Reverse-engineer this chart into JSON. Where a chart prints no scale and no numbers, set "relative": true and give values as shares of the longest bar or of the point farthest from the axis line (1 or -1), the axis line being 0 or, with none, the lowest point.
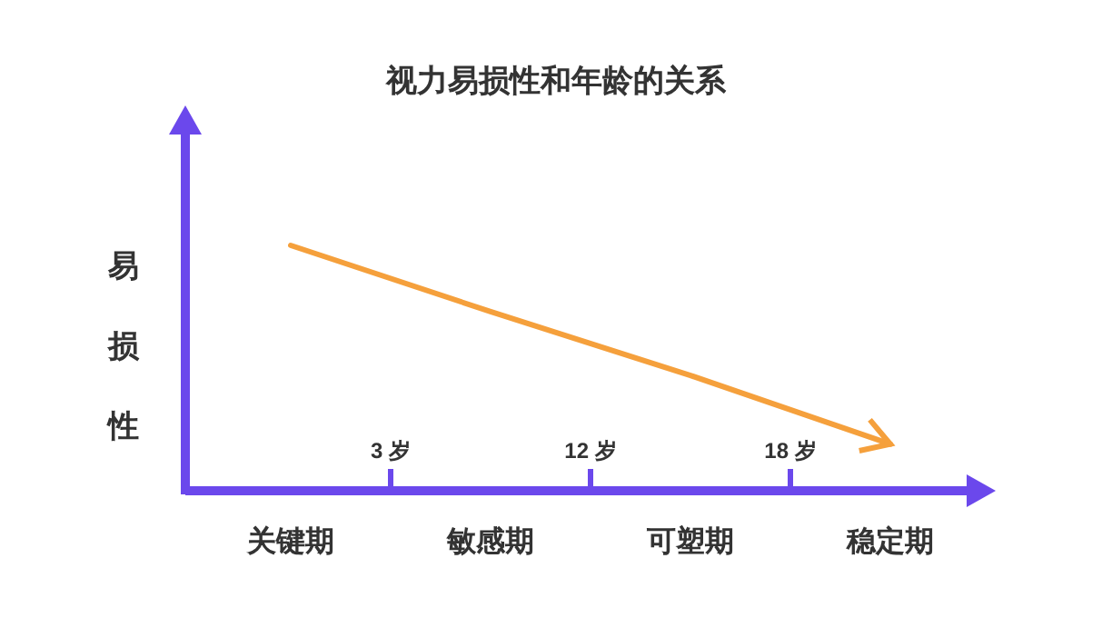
{
  "chart_data": {
    "type": "line",
    "title": "视力易损性和年龄的关系",
    "ylabel": "易损性",
    "categories": [
      "关键期",
      "敏感期",
      "可塑期",
      "稳定期"
    ],
    "series": [
      {
        "color": "#f5a03c",
        "values": [
          1,
          0.73,
          0.47,
          0.19
        ]
      }
    ],
    "relative": true,
    "annotations": [
      "3 岁",
      "12 岁",
      "18 岁"
    ]
  }
}
